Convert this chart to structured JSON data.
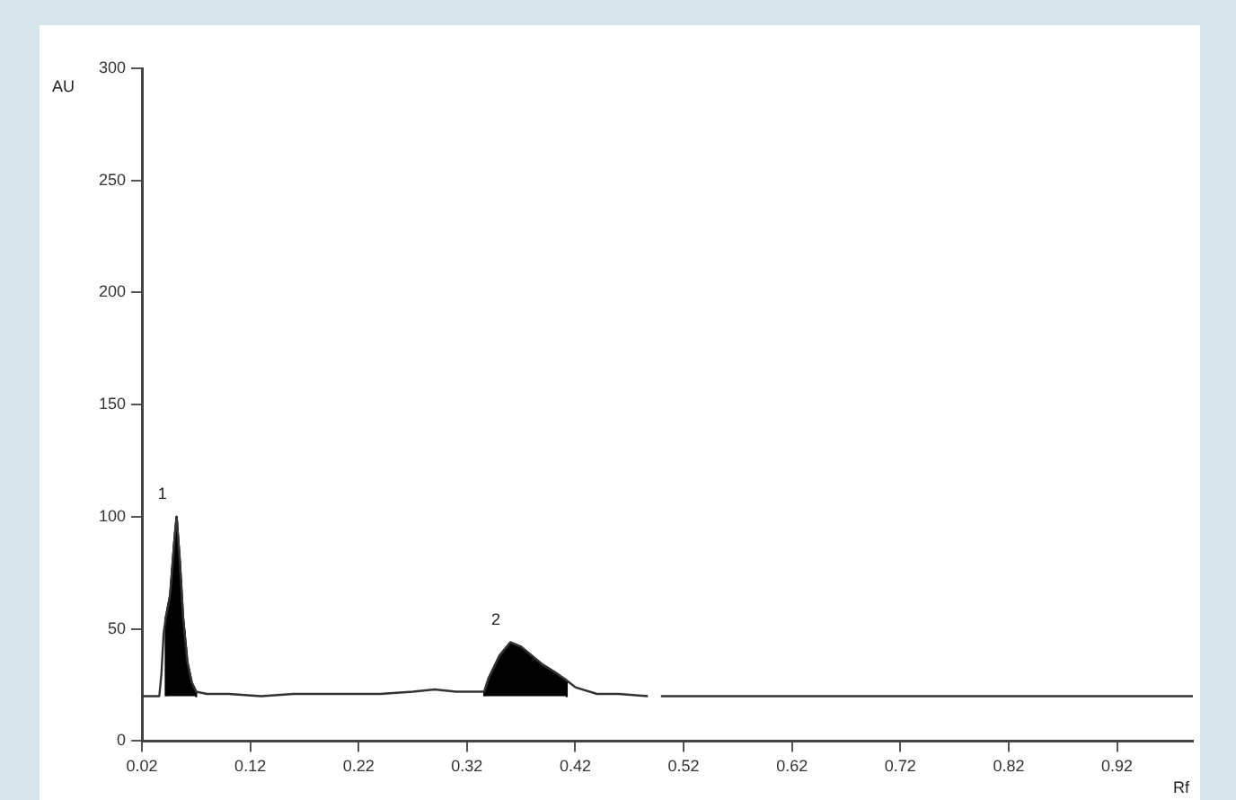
{
  "chart_data": {
    "type": "line",
    "xlabel": "Rf",
    "ylabel": "AU",
    "xlim": [
      0.02,
      0.99
    ],
    "ylim": [
      0,
      300
    ],
    "xticks": [
      0.02,
      0.12,
      0.22,
      0.32,
      0.42,
      0.52,
      0.62,
      0.72,
      0.82,
      0.92
    ],
    "yticks": [
      0,
      50,
      100,
      150,
      200,
      250,
      300
    ],
    "grid": false,
    "legend": false,
    "marker": "none",
    "line_style": "solid",
    "annotations": [
      {
        "text": "1",
        "x": 0.052,
        "y": 100
      },
      {
        "text": "2",
        "x": 0.36,
        "y": 44
      }
    ],
    "series": [
      {
        "type": "line",
        "color": "#333333",
        "x": [
          0.02,
          0.036,
          0.038,
          0.04,
          0.042,
          0.046,
          0.05,
          0.052,
          0.055,
          0.058,
          0.062,
          0.066,
          0.07,
          0.08,
          0.1,
          0.13,
          0.16,
          0.2,
          0.24,
          0.27,
          0.29,
          0.31,
          0.336,
          0.34,
          0.35,
          0.36,
          0.37,
          0.38,
          0.39,
          0.4,
          0.412,
          0.42,
          0.44,
          0.46,
          0.487,
          0.493,
          0.499,
          0.99
        ],
        "values": [
          20,
          20,
          30,
          48,
          55,
          65,
          90,
          100,
          80,
          55,
          35,
          26,
          22,
          21,
          21,
          20,
          21,
          21,
          21,
          22,
          23,
          22,
          22,
          28,
          38,
          44,
          42,
          38,
          34,
          31,
          27,
          24,
          21,
          21,
          20,
          null,
          20,
          20
        ]
      },
      {
        "type": "area",
        "color": "#000000",
        "x": [
          0.042,
          0.042,
          0.046,
          0.05,
          0.052,
          0.055,
          0.058,
          0.062,
          0.066,
          0.07,
          0.07
        ],
        "values": [
          20,
          55,
          65,
          90,
          100,
          80,
          55,
          35,
          26,
          22,
          20
        ]
      },
      {
        "type": "area",
        "color": "#000000",
        "x": [
          0.336,
          0.336,
          0.34,
          0.35,
          0.36,
          0.37,
          0.38,
          0.39,
          0.4,
          0.412,
          0.412
        ],
        "values": [
          20,
          22,
          28,
          38,
          44,
          42,
          38,
          34,
          31,
          27,
          20
        ]
      }
    ]
  }
}
